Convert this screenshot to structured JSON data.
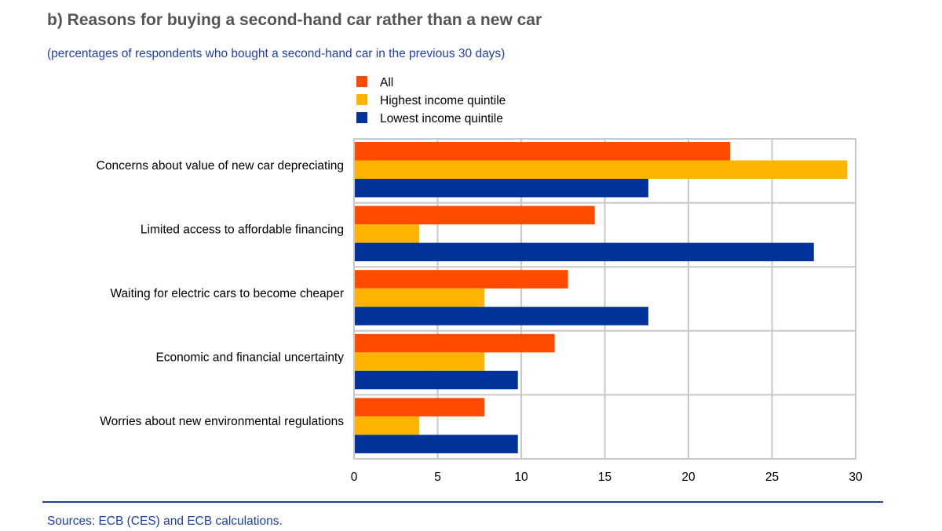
{
  "title": "b) Reasons for buying a second-hand car rather than a new car",
  "subtitle": "(percentages of respondents who bought a second-hand car in the previous 30 days)",
  "source": "Sources: ECB (CES) and ECB calculations.",
  "chart_data": {
    "type": "bar",
    "orientation": "horizontal",
    "categories": [
      "Concerns about value of new car depreciating",
      "Limited access to affordable financing",
      "Waiting for electric cars to become cheaper",
      "Economic and financial uncertainty",
      "Worries about new environmental regulations"
    ],
    "series": [
      {
        "name": "All",
        "color": "#ff4b00",
        "values": [
          22.5,
          14.4,
          12.8,
          12.0,
          7.8
        ]
      },
      {
        "name": "Highest income quintile",
        "color": "#ffb400",
        "values": [
          29.5,
          3.9,
          7.8,
          7.8,
          3.9
        ]
      },
      {
        "name": "Lowest income quintile",
        "color": "#003299",
        "values": [
          17.6,
          27.5,
          17.6,
          9.8,
          9.8
        ]
      }
    ],
    "xlim": [
      0,
      30
    ],
    "xticks": [
      "0",
      "5",
      "10",
      "15",
      "20",
      "25",
      "30"
    ],
    "grid": true,
    "legend": "top"
  }
}
